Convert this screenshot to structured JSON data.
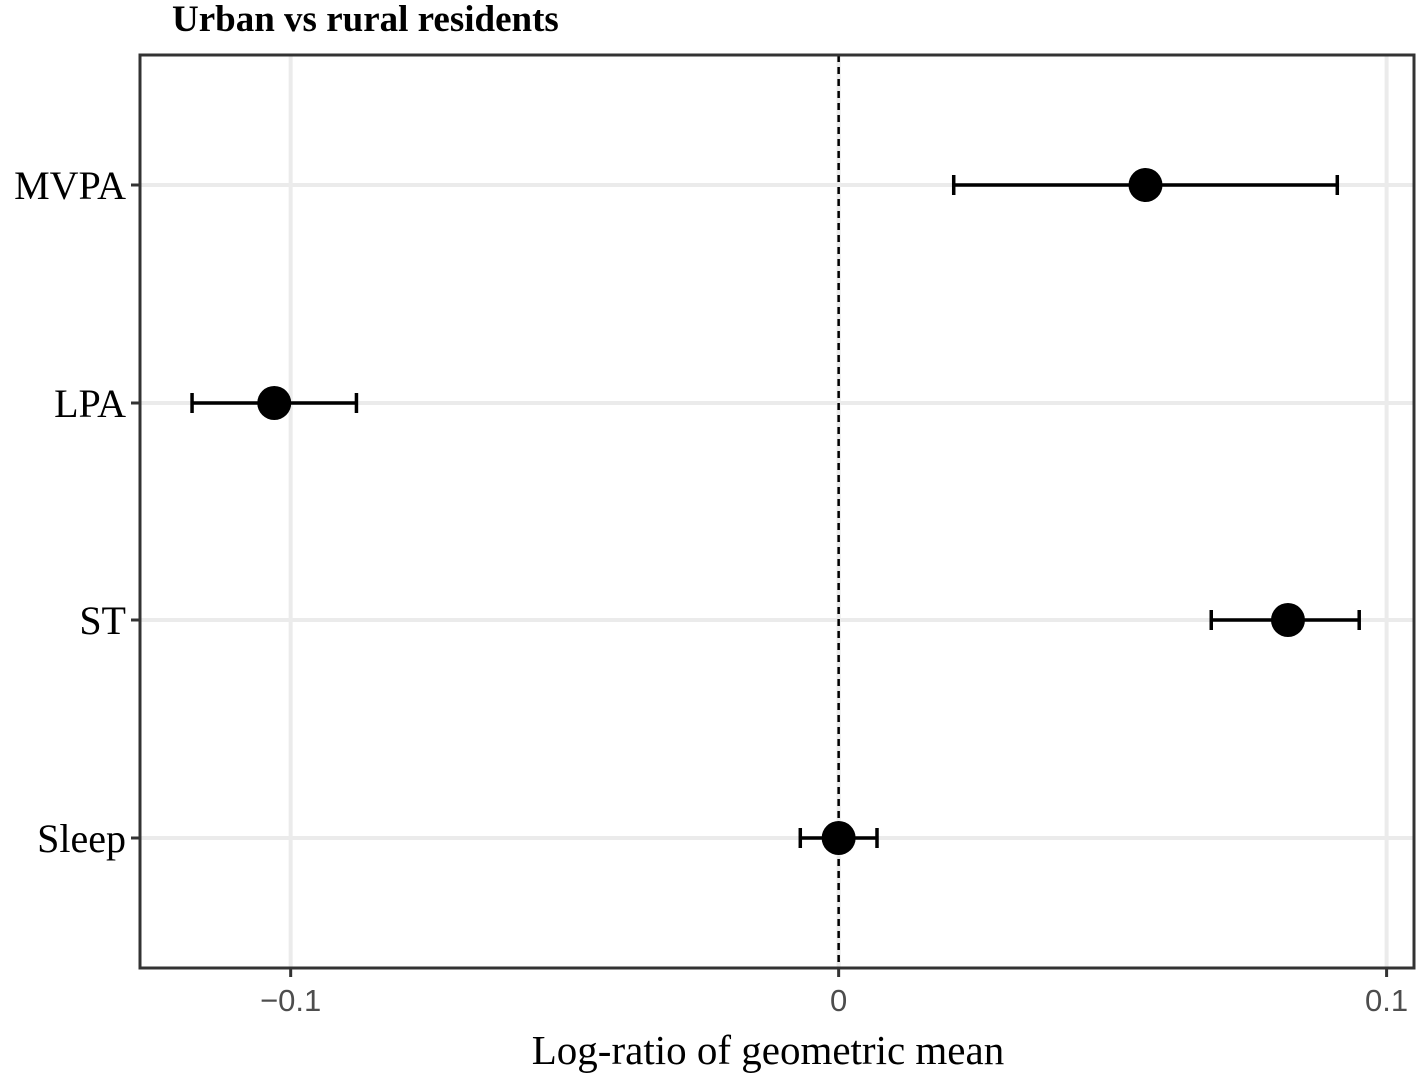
{
  "chart_data": {
    "type": "forest",
    "title": "Urban vs rural residents",
    "xlabel": "Log-ratio of geometric mean",
    "ylabel": "",
    "xlim": [
      -0.1275,
      0.105
    ],
    "xticks": [
      -0.1,
      0,
      0.1
    ],
    "xtick_labels": [
      "−0.1",
      "0",
      "0.1"
    ],
    "categories": [
      "MVPA",
      "LPA",
      "ST",
      "Sleep"
    ],
    "estimates": [
      0.056,
      -0.103,
      0.082,
      0.0
    ],
    "ci_lower": [
      0.021,
      -0.118,
      0.068,
      -0.007
    ],
    "ci_upper": [
      0.091,
      -0.088,
      0.095,
      0.007
    ],
    "reference_line": 0,
    "grid": true
  }
}
